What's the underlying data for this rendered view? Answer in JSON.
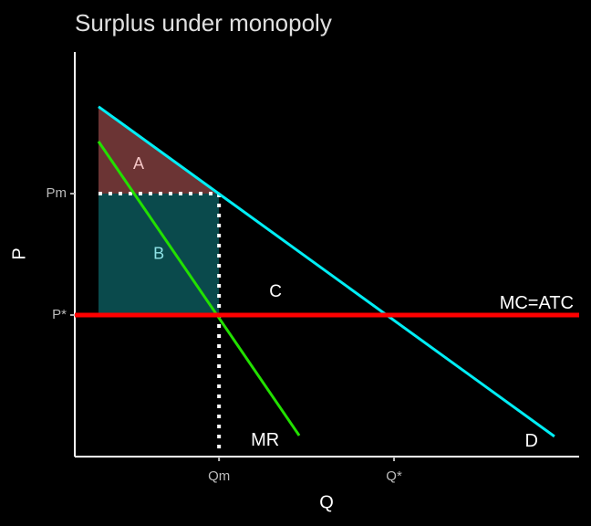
{
  "chart_data": {
    "type": "line",
    "title": "Surplus under monopoly",
    "xlabel": "Q",
    "ylabel": "P",
    "xlim": [
      0,
      10
    ],
    "ylim": [
      0,
      10
    ],
    "xticks": [
      {
        "value": 2.86,
        "label": "Qm"
      },
      {
        "value": 6.33,
        "label": "Q*"
      }
    ],
    "yticks": [
      {
        "value": 3.5,
        "label": "P*"
      },
      {
        "value": 6.5,
        "label": "Pm"
      }
    ],
    "regions": [
      {
        "name": "A",
        "color": "#6b3434",
        "label_color": "#f4c6c6",
        "x": [
          0.47,
          2.86,
          0.47
        ],
        "values": [
          8.65,
          6.5,
          6.5
        ]
      },
      {
        "name": "B",
        "color": "#0a4a4c",
        "label_color": "#8fe3e6",
        "x": [
          0.47,
          2.86,
          2.86,
          0.47
        ],
        "values": [
          6.5,
          6.5,
          3.5,
          3.5
        ]
      }
    ],
    "guides": [
      {
        "x": [
          0.47,
          2.86
        ],
        "values": [
          6.5,
          6.5
        ]
      },
      {
        "x": [
          2.86,
          2.86
        ],
        "values": [
          6.5,
          0.2
        ]
      }
    ],
    "series": [
      {
        "name": "D",
        "color": "#00eef5",
        "x": [
          0.47,
          9.51
        ],
        "values": [
          8.65,
          0.5
        ]
      },
      {
        "name": "MR",
        "color": "#22e000",
        "x": [
          0.47,
          4.45
        ],
        "values": [
          7.79,
          0.52
        ]
      },
      {
        "name": "MC=ATC",
        "color": "#ff0000",
        "x": [
          0,
          10
        ],
        "values": [
          3.5,
          3.5
        ]
      }
    ],
    "annotations": [
      {
        "text": "C",
        "x": 3.98,
        "y": 4.06
      }
    ]
  }
}
